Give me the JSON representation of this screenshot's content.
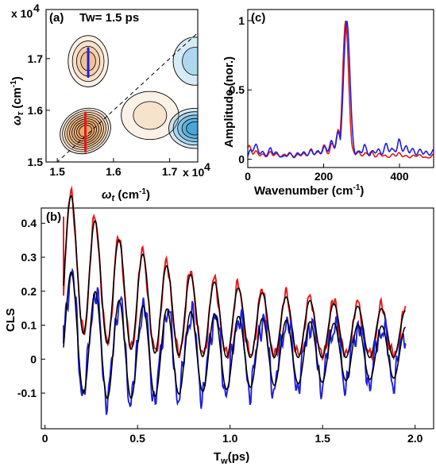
{
  "colors": {
    "red": "#e31a1c",
    "blue": "#1f1fe0",
    "fit": "#000000",
    "positive_contour_fill": "#e8a868",
    "negative_contour_fill": "#2f9ad2",
    "diagonal": "#000000"
  },
  "chart_data": [
    {
      "panel": "(a)",
      "type": "heatmap",
      "title": "Tw= 1.5 ps",
      "xlabel": "ωt (cm-1)",
      "ylabel": "ωτ (cm-1)",
      "x_exponent": "x 10",
      "x_exponent_power": "4",
      "y_exponent": "x 10",
      "y_exponent_power": "4",
      "xlim": [
        14800,
        17500
      ],
      "ylim": [
        15000,
        17950
      ],
      "x_ticks": [
        15000,
        16000,
        17000
      ],
      "x_tick_labels": [
        "1.5",
        "1.6",
        "1.7"
      ],
      "y_ticks": [
        15000,
        16000,
        17000
      ],
      "y_tick_labels": [
        "1.5",
        "1.6",
        "1.7"
      ],
      "diagonal": true,
      "peaks": [
        {
          "x": 15500,
          "y": 15600,
          "sign": "positive",
          "amplitude": 1.0,
          "sx": 300,
          "sy": 320
        },
        {
          "x": 15550,
          "y": 16950,
          "sign": "positive",
          "amplitude": 0.45,
          "sx": 230,
          "sy": 320
        },
        {
          "x": 16650,
          "y": 15900,
          "sign": "positive",
          "amplitude": 0.18,
          "sx": 330,
          "sy": 300
        },
        {
          "x": 17450,
          "y": 15650,
          "sign": "negative",
          "amplitude": 0.6,
          "sx": 300,
          "sy": 250
        },
        {
          "x": 17450,
          "y": 16950,
          "sign": "negative",
          "amplitude": 0.15,
          "sx": 250,
          "sy": 300
        }
      ],
      "center_lines": [
        {
          "color": "red",
          "x": [
            15500,
            15500
          ],
          "y": [
            15200,
            15950
          ]
        },
        {
          "color": "blue",
          "x": [
            15550,
            15550
          ],
          "y": [
            16650,
            17200
          ]
        }
      ]
    },
    {
      "panel": "(c)",
      "type": "line",
      "xlabel": "Wavenumber (cm-1)",
      "ylabel": "Amplitude (nor.)",
      "xlim": [
        0,
        490
      ],
      "ylim": [
        -0.06,
        1.08
      ],
      "x_ticks": [
        0,
        200,
        400
      ],
      "y_ticks": [
        0,
        0.5,
        1
      ],
      "y_tick_labels": [
        "0",
        "0.5",
        "1"
      ],
      "series": [
        {
          "color": "red",
          "peak_x": 258,
          "peak_y": 1.0,
          "peak_width": 11,
          "noise": [
            0.11,
            0.07,
            0.05,
            0.03,
            0.06,
            0.04,
            0.03,
            0.06,
            0.02,
            0.05,
            0.04,
            0.08,
            0.05,
            0.11,
            0.07,
            0.18,
            0.24,
            0.12,
            0.09,
            0.06,
            0.04,
            0.07,
            0.03,
            0.05,
            0.02,
            0.04,
            0.05,
            0.03,
            0.02,
            0.04,
            0.03,
            0.01,
            0.04
          ]
        },
        {
          "color": "blue",
          "peak_x": 261,
          "peak_y": 1.0,
          "peak_width": 12,
          "noise": [
            0.03,
            0.13,
            0.08,
            0.04,
            0.09,
            0.05,
            0.02,
            0.05,
            0.03,
            0.06,
            0.05,
            0.07,
            0.06,
            0.09,
            0.12,
            0.16,
            0.23,
            0.17,
            0.08,
            0.05,
            0.12,
            0.04,
            0.09,
            0.06,
            0.13,
            0.07,
            0.15,
            0.1,
            0.09,
            0.06,
            0.08,
            0.05,
            0.07
          ]
        }
      ]
    },
    {
      "panel": "(b)",
      "type": "line",
      "xlabel": "Tw(ps)",
      "ylabel": "CLS",
      "xlim": [
        -0.02,
        2.1
      ],
      "ylim": [
        -0.205,
        0.445
      ],
      "x_ticks": [
        0,
        0.5,
        1.0,
        1.5,
        2.0
      ],
      "x_tick_labels": [
        "0",
        "0.5",
        "1.0",
        "1.5",
        "2.0"
      ],
      "y_ticks": [
        -0.1,
        0,
        0.1,
        0.2,
        0.3,
        0.4
      ],
      "y_tick_labels": [
        "-0.1",
        "0",
        "0.1",
        "0.2",
        "0.3",
        "0.4"
      ],
      "x_range": [
        0.1,
        1.95
      ],
      "oscillation_period_ps": 0.129,
      "upper_model": {
        "offset": 0.02,
        "decay_amp": 0.18,
        "decay_tau": 0.35,
        "slow_amp": 0.11,
        "slow_tau": 2.5,
        "osc_amp": 0.15,
        "osc_tau": 0.9,
        "osc_floor": 0.05,
        "phase": 2.06
      },
      "lower_model": {
        "offset": 0.02,
        "decay_amp": 0.1,
        "decay_tau": 0.12,
        "slow_amp": 0.0,
        "slow_tau": 1.0,
        "osc_amp": 0.13,
        "osc_tau": 1.4,
        "osc_floor": 0.04,
        "phase": 2.1
      },
      "series": [
        {
          "name": "",
          "color": "red",
          "role": "data-upper",
          "start": [
            0.1,
            0.42
          ]
        },
        {
          "name": "",
          "color": "fit",
          "role": "fit-upper"
        },
        {
          "name": "",
          "color": "blue",
          "role": "data-lower",
          "start": [
            0.1,
            0.1
          ]
        },
        {
          "name": "",
          "color": "fit",
          "role": "fit-lower"
        }
      ]
    }
  ]
}
